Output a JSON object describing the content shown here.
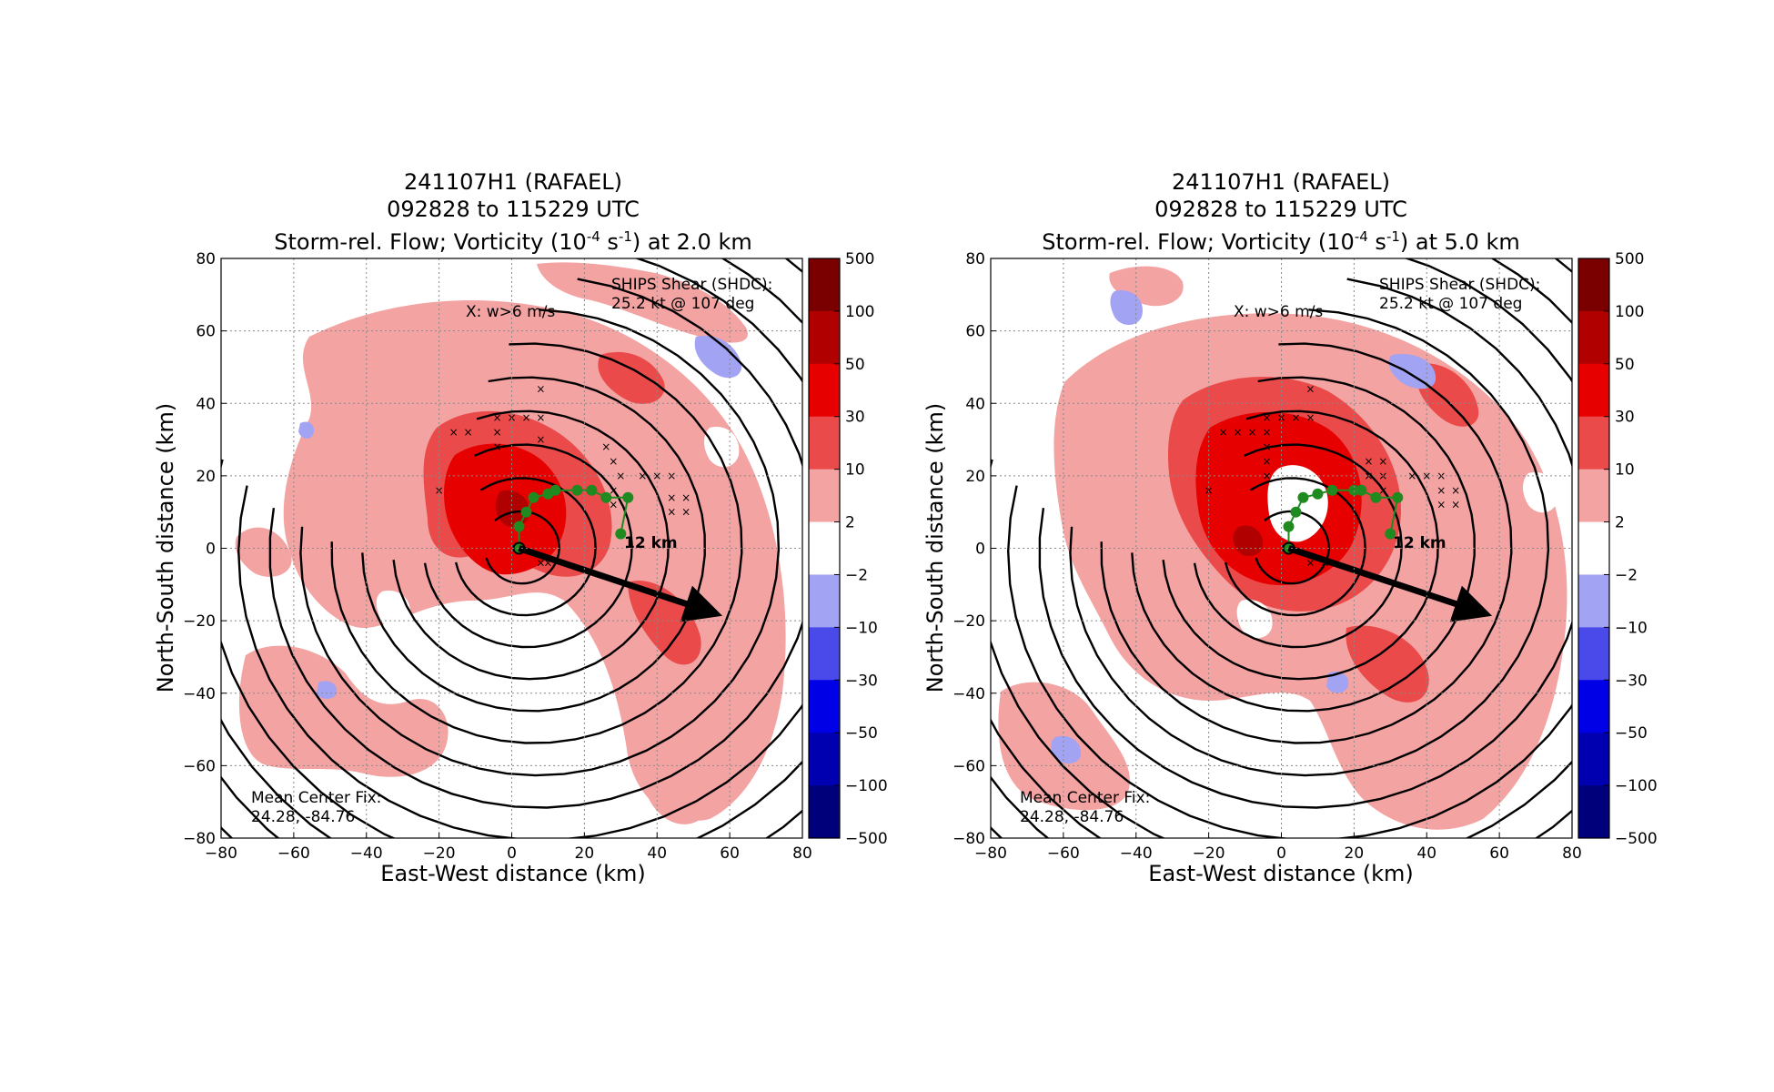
{
  "colors": {
    "pos_levels": [
      "#f4a3a3",
      "#ea4a4a",
      "#e60000",
      "#b00000",
      "#7a0000"
    ],
    "neg_levels": [
      "#a3a3f4",
      "#4a4aea",
      "#0000e6",
      "#0000b0",
      "#00007a"
    ],
    "track": "#1f8a1f",
    "vector": "#000000"
  },
  "colorbar": {
    "ticks": [
      "500",
      "100",
      "50",
      "30",
      "10",
      "2",
      "−2",
      "−10",
      "−30",
      "−50",
      "−100",
      "−500"
    ]
  },
  "shared": {
    "date_label": "241107H1 (RAFAEL)",
    "time_label": "092828 to 115229 UTC",
    "xlabel": "East-West distance (km)",
    "ylabel": "North-South distance (km)",
    "updraft_note": "X: w>6 m/s",
    "shear_note_1": "SHIPS Shear (SHDC):",
    "shear_note_2": "25.2 kt @ 107 deg",
    "center_note_1": "Mean Center Fix:",
    "center_note_2": "24.28, -84.76",
    "km_label": "12 km"
  },
  "chart_data": [
    {
      "type": "heatmap",
      "title_prefix": "Storm-rel. Flow; Vorticity (10",
      "title_exp1": "-4",
      "title_mid": " s",
      "title_exp2": "-1",
      "title_suffix": ") at 2.0 km",
      "xlim": [
        -80,
        80
      ],
      "ylim": [
        -80,
        80
      ],
      "xticks": [
        -80,
        -60,
        -40,
        -20,
        0,
        20,
        40,
        60,
        80
      ],
      "yticks": [
        -80,
        -60,
        -40,
        -20,
        0,
        20,
        40,
        60,
        80
      ],
      "grid": true,
      "center": [
        2,
        0
      ],
      "shear_vector_end": [
        56,
        -18
      ],
      "track": [
        [
          2,
          0
        ],
        [
          2,
          6
        ],
        [
          4,
          10
        ],
        [
          6,
          14
        ],
        [
          10,
          15
        ],
        [
          12,
          16
        ],
        [
          18,
          16
        ],
        [
          22,
          16
        ],
        [
          26,
          14
        ],
        [
          32,
          14
        ],
        [
          30,
          4
        ]
      ],
      "updrafts": [
        [
          -4,
          36
        ],
        [
          -4,
          32
        ],
        [
          0,
          36
        ],
        [
          4,
          36
        ],
        [
          8,
          36
        ],
        [
          8,
          30
        ],
        [
          -4,
          28
        ],
        [
          -12,
          32
        ],
        [
          -16,
          32
        ],
        [
          8,
          44
        ],
        [
          26,
          28
        ],
        [
          28,
          24
        ],
        [
          30,
          20
        ],
        [
          28,
          16
        ],
        [
          28,
          12
        ],
        [
          36,
          20
        ],
        [
          40,
          20
        ],
        [
          44,
          20
        ],
        [
          44,
          14
        ],
        [
          48,
          14
        ],
        [
          44,
          10
        ],
        [
          48,
          10
        ],
        [
          -20,
          16
        ],
        [
          10,
          -4
        ],
        [
          8,
          -4
        ]
      ]
    },
    {
      "type": "heatmap",
      "title_prefix": "Storm-rel. Flow; Vorticity (10",
      "title_exp1": "-4",
      "title_mid": " s",
      "title_exp2": "-1",
      "title_suffix": ") at 5.0 km",
      "xlim": [
        -80,
        80
      ],
      "ylim": [
        -80,
        80
      ],
      "xticks": [
        -80,
        -60,
        -40,
        -20,
        0,
        20,
        40,
        60,
        80
      ],
      "yticks": [
        -80,
        -60,
        -40,
        -20,
        0,
        20,
        40,
        60,
        80
      ],
      "grid": true,
      "center": [
        2,
        0
      ],
      "shear_vector_end": [
        56,
        -18
      ],
      "track": [
        [
          2,
          0
        ],
        [
          2,
          6
        ],
        [
          4,
          10
        ],
        [
          6,
          14
        ],
        [
          10,
          15
        ],
        [
          14,
          16
        ],
        [
          20,
          16
        ],
        [
          22,
          16
        ],
        [
          26,
          14
        ],
        [
          32,
          14
        ],
        [
          30,
          4
        ]
      ],
      "updrafts": [
        [
          -4,
          36
        ],
        [
          0,
          36
        ],
        [
          4,
          36
        ],
        [
          8,
          36
        ],
        [
          -4,
          32
        ],
        [
          -4,
          28
        ],
        [
          -8,
          32
        ],
        [
          -12,
          32
        ],
        [
          -16,
          32
        ],
        [
          -4,
          24
        ],
        [
          -4,
          20
        ],
        [
          -20,
          16
        ],
        [
          8,
          44
        ],
        [
          24,
          24
        ],
        [
          24,
          20
        ],
        [
          28,
          24
        ],
        [
          28,
          20
        ],
        [
          28,
          16
        ],
        [
          36,
          20
        ],
        [
          40,
          20
        ],
        [
          44,
          20
        ],
        [
          44,
          16
        ],
        [
          48,
          16
        ],
        [
          44,
          12
        ],
        [
          48,
          12
        ],
        [
          8,
          -4
        ],
        [
          12,
          -4
        ]
      ]
    }
  ]
}
